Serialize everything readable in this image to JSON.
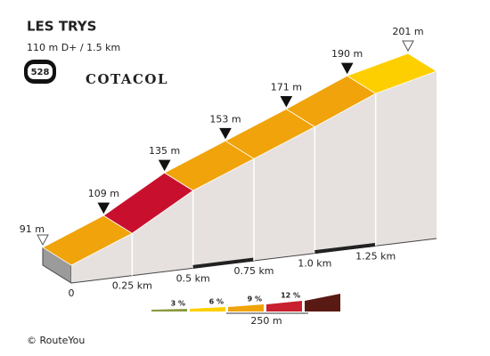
{
  "chart_data": {
    "type": "profile",
    "title": "LES TRYS",
    "subtitle": "110 m D+ / 1.5 km",
    "badge": "528",
    "badge_label": "COTACOL",
    "x": [
      0,
      0.25,
      0.5,
      0.75,
      1.0,
      1.25,
      1.5
    ],
    "values": [
      91,
      109,
      135,
      153,
      171,
      190,
      201
    ],
    "value_labels": [
      "91 m",
      "109 m",
      "135 m",
      "153 m",
      "171 m",
      "190 m",
      "201 m"
    ],
    "segment_colors": [
      "#f0a30a",
      "#c8102e",
      "#f0a30a",
      "#f0a30a",
      "#f0a30a",
      "#fecf00"
    ],
    "xlim": [
      0,
      1.5
    ],
    "xticks": [
      0,
      {
        "value": 0.25,
        "label": "0.25 km"
      },
      {
        "value": 0.5,
        "label": "0.5 km"
      },
      {
        "value": 0.75,
        "label": "0.75 km"
      },
      {
        "value": 1.0,
        "label": "1.0 km"
      },
      {
        "value": 1.25,
        "label": "1.25 km"
      }
    ],
    "legend": {
      "labels": [
        "3 %",
        "6 %",
        "9 %",
        "12 %"
      ],
      "colors": [
        "#8a9a3c",
        "#fecf00",
        "#f0a30a",
        "#c8202e",
        "#5a1a14"
      ],
      "scale_label": "250 m"
    },
    "credit": "© RouteYou"
  }
}
